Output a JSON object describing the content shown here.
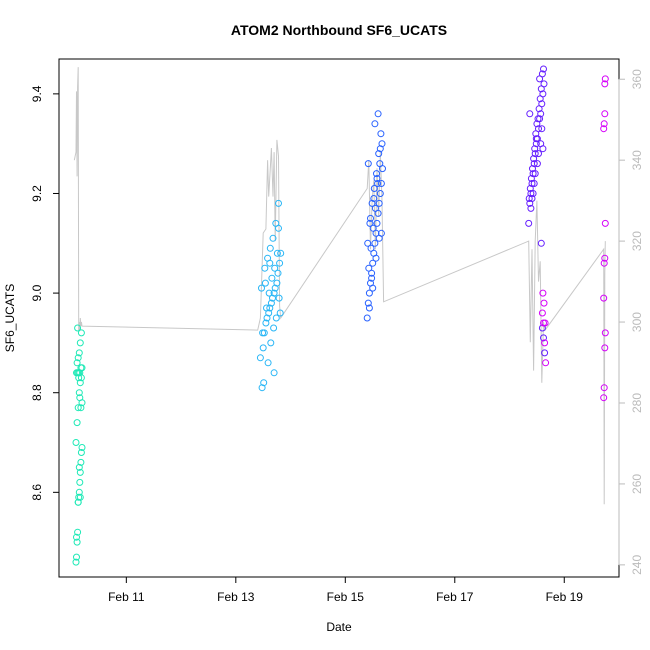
{
  "chart_data": {
    "type": "scatter",
    "title": "ATOM2 Northbound SF6_UCATS",
    "xlabel": "Date",
    "ylabel": "SF6_UCATS",
    "x_ticks": [
      "Feb 11",
      "Feb 13",
      "Feb 15",
      "Feb 17",
      "Feb 19"
    ],
    "x_tick_days": [
      11,
      13,
      15,
      17,
      19
    ],
    "xlim_days": [
      9.77,
      20.0
    ],
    "y_ticks": [
      8.6,
      8.8,
      9.0,
      9.2,
      9.4
    ],
    "ylim": [
      8.43,
      9.47
    ],
    "y2_ticks": [
      240,
      260,
      280,
      300,
      320,
      340,
      360
    ],
    "y2lim": [
      237,
      365
    ],
    "y2_color": "#bbbbbb",
    "series": [
      {
        "color": "#1de9b6",
        "x": [
          10.08,
          10.09,
          10.1,
          10.11,
          10.12,
          10.13,
          10.14,
          10.15,
          10.16,
          10.17,
          10.18,
          10.19,
          10.08,
          10.1,
          10.12,
          10.14,
          10.16,
          10.18,
          10.09,
          10.11,
          10.13,
          10.15,
          10.17,
          10.19,
          10.1,
          10.12,
          10.14,
          10.16,
          10.18,
          10.11,
          10.13,
          10.15,
          10.17,
          10.19,
          10.09,
          10.12,
          10.14,
          10.16
        ],
        "y": [
          8.46,
          8.47,
          8.5,
          8.52,
          8.58,
          8.59,
          8.6,
          8.62,
          8.64,
          8.66,
          8.68,
          8.69,
          8.7,
          8.74,
          8.77,
          8.8,
          8.82,
          8.83,
          8.84,
          8.84,
          8.84,
          8.84,
          8.85,
          8.85,
          8.86,
          8.87,
          8.88,
          8.9,
          8.92,
          8.93,
          8.83,
          8.79,
          8.77,
          8.78,
          8.51,
          8.58,
          8.65,
          8.59
        ]
      },
      {
        "color": "#29b6f6",
        "x": [
          13.45,
          13.48,
          13.5,
          13.52,
          13.55,
          13.57,
          13.6,
          13.62,
          13.65,
          13.67,
          13.7,
          13.72,
          13.75,
          13.77,
          13.8,
          13.82,
          13.47,
          13.53,
          13.58,
          13.63,
          13.68,
          13.73,
          13.78,
          13.49,
          13.56,
          13.61,
          13.66,
          13.71,
          13.76,
          13.81,
          13.51,
          13.59,
          13.64,
          13.69,
          13.74,
          13.79,
          13.54,
          13.62,
          13.7,
          13.78
        ],
        "y": [
          8.87,
          8.81,
          8.89,
          8.92,
          8.94,
          8.95,
          8.96,
          8.97,
          8.98,
          8.99,
          9.0,
          9.01,
          9.02,
          9.04,
          9.06,
          9.08,
          9.01,
          9.05,
          9.07,
          9.09,
          9.11,
          9.14,
          9.18,
          8.92,
          8.97,
          9.0,
          9.03,
          9.05,
          9.08,
          8.96,
          8.82,
          8.86,
          8.9,
          8.93,
          8.95,
          8.99,
          9.02,
          9.06,
          8.84,
          9.13
        ]
      },
      {
        "color": "#2962ff",
        "x": [
          15.4,
          15.42,
          15.44,
          15.46,
          15.48,
          15.5,
          15.52,
          15.54,
          15.56,
          15.58,
          15.6,
          15.62,
          15.64,
          15.66,
          15.68,
          15.41,
          15.45,
          15.49,
          15.53,
          15.57,
          15.61,
          15.65,
          15.43,
          15.47,
          15.51,
          15.55,
          15.59,
          15.63,
          15.67,
          15.44,
          15.5,
          15.56,
          15.62,
          15.46,
          15.52,
          15.58,
          15.64,
          15.48,
          15.54,
          15.6,
          15.66,
          15.42
        ],
        "y": [
          8.95,
          8.98,
          9.0,
          9.02,
          9.04,
          9.06,
          9.08,
          9.1,
          9.12,
          9.14,
          9.16,
          9.18,
          9.2,
          9.22,
          9.25,
          9.1,
          9.14,
          9.18,
          9.21,
          9.24,
          9.28,
          9.32,
          9.05,
          9.09,
          9.13,
          9.17,
          9.22,
          9.26,
          9.3,
          8.97,
          9.01,
          9.07,
          9.11,
          9.15,
          9.19,
          9.23,
          9.29,
          9.03,
          9.34,
          9.36,
          9.12,
          9.26
        ]
      },
      {
        "color": "#651fff",
        "x": [
          18.35,
          18.37,
          18.39,
          18.41,
          18.43,
          18.45,
          18.47,
          18.49,
          18.51,
          18.53,
          18.55,
          18.57,
          18.59,
          18.61,
          18.63,
          18.36,
          18.4,
          18.44,
          18.48,
          18.52,
          18.56,
          18.6,
          18.38,
          18.42,
          18.46,
          18.5,
          18.54,
          18.58,
          18.62,
          18.39,
          18.45,
          18.51,
          18.57,
          18.41,
          18.47,
          18.53,
          18.59,
          18.43,
          18.49,
          18.55,
          18.61,
          18.37,
          18.58,
          18.6,
          18.62,
          18.64
        ],
        "y": [
          9.14,
          9.18,
          9.2,
          9.22,
          9.24,
          9.26,
          9.28,
          9.3,
          9.31,
          9.33,
          9.35,
          9.36,
          9.38,
          9.4,
          9.42,
          9.19,
          9.23,
          9.27,
          9.32,
          9.35,
          9.39,
          9.44,
          9.21,
          9.25,
          9.29,
          9.34,
          9.37,
          9.41,
          9.45,
          9.17,
          9.22,
          9.26,
          9.3,
          9.19,
          9.24,
          9.28,
          9.33,
          9.2,
          9.31,
          9.43,
          9.29,
          9.36,
          9.1,
          8.93,
          8.91,
          8.88
        ]
      },
      {
        "color": "#d500f9",
        "x": [
          18.6,
          18.62,
          18.64,
          18.66,
          18.61,
          18.63,
          18.65,
          19.72,
          19.73,
          19.74,
          19.75,
          19.72,
          19.73,
          19.74,
          19.75,
          19.73,
          19.74,
          19.72
        ],
        "y": [
          8.96,
          8.94,
          8.9,
          8.86,
          9.0,
          8.98,
          8.94,
          8.79,
          8.81,
          8.89,
          8.92,
          8.99,
          9.06,
          9.07,
          9.14,
          9.34,
          9.36,
          9.33
        ]
      },
      {
        "color": "#d500f9",
        "x": [
          19.74,
          19.75
        ],
        "y": [
          9.42,
          9.43
        ]
      }
    ],
    "secondary_line": {
      "color": "#c8c8c8",
      "x": [
        10.05,
        10.08,
        10.09,
        10.1,
        10.11,
        10.12,
        10.13,
        10.14,
        10.15,
        10.16,
        10.17,
        10.18,
        10.19,
        13.4,
        13.45,
        13.5,
        13.55,
        13.58,
        13.6,
        13.63,
        13.65,
        13.68,
        13.7,
        13.72,
        13.75,
        13.78,
        13.8,
        13.82,
        15.4,
        15.43,
        15.46,
        15.49,
        15.52,
        15.55,
        15.58,
        15.61,
        15.64,
        15.67,
        15.7,
        18.35,
        18.38,
        18.41,
        18.44,
        18.47,
        18.5,
        18.53,
        18.56,
        18.59,
        18.62,
        18.65,
        19.72,
        19.73,
        19.74,
        19.75
      ],
      "y": [
        340,
        342,
        357,
        336,
        358,
        363,
        298,
        300,
        298,
        301,
        299,
        300,
        299,
        298,
        301,
        322,
        323,
        340,
        331,
        338,
        343,
        331,
        342,
        320,
        345,
        341,
        304,
        301,
        333,
        340,
        318,
        330,
        335,
        318,
        338,
        326,
        342,
        330,
        305,
        320,
        295,
        318,
        288,
        320,
        330,
        310,
        315,
        285,
        300,
        298,
        318,
        255,
        312,
        320
      ]
    }
  }
}
